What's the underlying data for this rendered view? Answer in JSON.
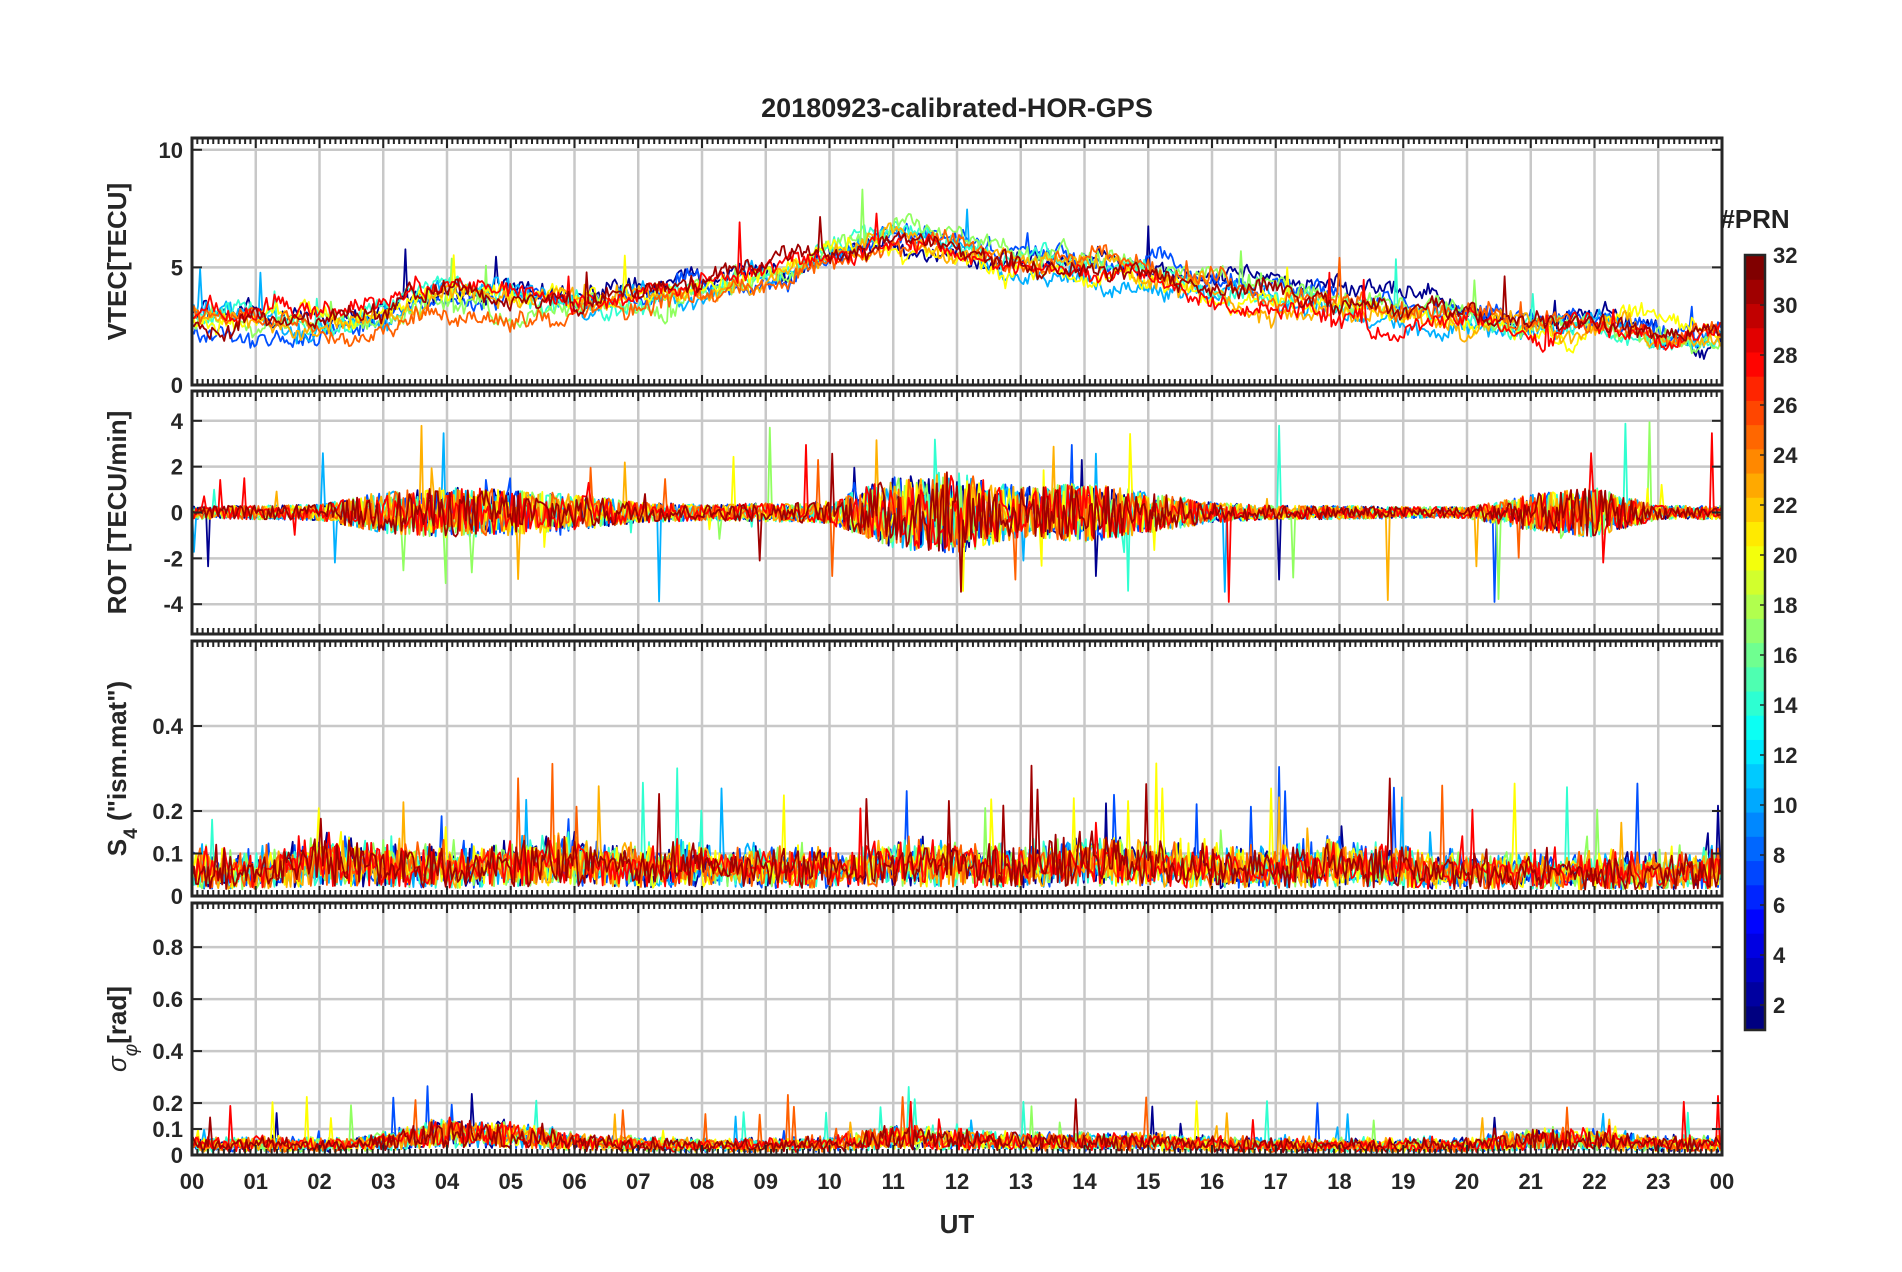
{
  "chart_data": {
    "type": "line",
    "title": "20180923-calibrated-HOR-GPS",
    "xlabel": "UT",
    "xlim": [
      0,
      24
    ],
    "x_tick_labels": [
      "00",
      "01",
      "02",
      "03",
      "04",
      "05",
      "06",
      "07",
      "08",
      "09",
      "10",
      "11",
      "12",
      "13",
      "14",
      "15",
      "16",
      "17",
      "18",
      "19",
      "20",
      "21",
      "22",
      "23",
      "00"
    ],
    "grid": true,
    "colormap": "jet",
    "colorbar": {
      "label": "#PRN",
      "range": [
        1,
        32
      ],
      "tick_labels": [
        "2",
        "4",
        "6",
        "8",
        "10",
        "12",
        "14",
        "16",
        "18",
        "20",
        "22",
        "24",
        "26",
        "28",
        "30",
        "32"
      ],
      "placement": "right"
    },
    "series_colors": [
      "#00008f",
      "#0050ff",
      "#00b0ff",
      "#30ffd0",
      "#90ff60",
      "#ffff00",
      "#ffb000",
      "#ff6000",
      "#ff0000",
      "#a00000"
    ],
    "panels": [
      {
        "id": "vtec",
        "ylabel": "VTEC[TECU]",
        "ylim": [
          0,
          10.5
        ],
        "y_ticks": [
          0,
          5,
          10
        ],
        "y_tick_labels": [
          "0",
          "5",
          "10"
        ],
        "profile_x": [
          0,
          1,
          2,
          3,
          4,
          5,
          6,
          7,
          8,
          9,
          10,
          11,
          12,
          13,
          14,
          15,
          16,
          17,
          18,
          19,
          20,
          21,
          22,
          23,
          24
        ],
        "profile_y": [
          3.0,
          2.7,
          2.6,
          3.0,
          3.9,
          3.6,
          3.3,
          3.7,
          4.2,
          4.8,
          5.6,
          6.3,
          6.1,
          5.3,
          5.1,
          5.0,
          4.5,
          4.0,
          3.4,
          3.0,
          2.8,
          2.7,
          2.8,
          2.2,
          2.0
        ],
        "noise": 0.55,
        "spike": 2.2
      },
      {
        "id": "rot",
        "ylabel": "ROT [TECU/min]",
        "ylim": [
          -5.3,
          5.3
        ],
        "y_ticks": [
          -4,
          -2,
          0,
          2,
          4
        ],
        "y_tick_labels": [
          "-4",
          "-2",
          "0",
          "2",
          "4"
        ],
        "profile_x": [
          0,
          1,
          2,
          3,
          4,
          5,
          6,
          7,
          8,
          9,
          10,
          11,
          12,
          13,
          14,
          15,
          16,
          17,
          18,
          19,
          20,
          21,
          22,
          23,
          24
        ],
        "profile_y": [
          0.3,
          0.3,
          0.35,
          0.9,
          1.1,
          1.0,
          0.8,
          0.45,
          0.35,
          0.4,
          0.5,
          1.6,
          1.8,
          1.1,
          1.3,
          0.9,
          0.45,
          0.3,
          0.3,
          0.25,
          0.25,
          0.8,
          1.1,
          0.3,
          0.3
        ],
        "noise": 1.0,
        "spike": 4.0
      },
      {
        "id": "s4",
        "ylabel": "S4 (\"ism.mat\")",
        "ylabel_main": "S",
        "ylabel_sub": "4",
        "ylabel_rest": " (\"ism.mat\")",
        "ylim": [
          0,
          0.6
        ],
        "y_ticks": [
          0,
          0.1,
          0.2,
          0.4
        ],
        "y_tick_labels": [
          "0",
          "0.1",
          "0.2",
          "0.4"
        ],
        "profile_x": [
          0,
          1,
          2,
          3,
          4,
          5,
          6,
          7,
          8,
          9,
          10,
          11,
          12,
          13,
          14,
          15,
          16,
          17,
          18,
          19,
          20,
          21,
          22,
          23,
          24
        ],
        "profile_y": [
          0.06,
          0.05,
          0.08,
          0.07,
          0.06,
          0.07,
          0.08,
          0.06,
          0.07,
          0.06,
          0.06,
          0.07,
          0.07,
          0.06,
          0.08,
          0.07,
          0.06,
          0.06,
          0.07,
          0.06,
          0.05,
          0.05,
          0.05,
          0.05,
          0.06
        ],
        "noise": 0.04,
        "spike": 0.25
      },
      {
        "id": "sigphi",
        "ylabel": "σφ[rad]",
        "ylabel_main": "σ",
        "ylabel_sub": "φ",
        "ylabel_rest": "[rad]",
        "ylim": [
          0,
          0.97
        ],
        "y_ticks": [
          0,
          0.1,
          0.2,
          0.4,
          0.6,
          0.8
        ],
        "y_tick_labels": [
          "0",
          "0.1",
          "0.2",
          "0.4",
          "0.6",
          "0.8"
        ],
        "profile_x": [
          0,
          1,
          2,
          3,
          4,
          5,
          6,
          7,
          8,
          9,
          10,
          11,
          12,
          13,
          14,
          15,
          16,
          17,
          18,
          19,
          20,
          21,
          22,
          23,
          24
        ],
        "profile_y": [
          0.04,
          0.04,
          0.035,
          0.05,
          0.09,
          0.08,
          0.05,
          0.04,
          0.035,
          0.035,
          0.04,
          0.07,
          0.06,
          0.05,
          0.05,
          0.05,
          0.04,
          0.035,
          0.035,
          0.035,
          0.035,
          0.06,
          0.06,
          0.04,
          0.04
        ],
        "noise": 0.02,
        "spike": 0.2
      }
    ]
  }
}
